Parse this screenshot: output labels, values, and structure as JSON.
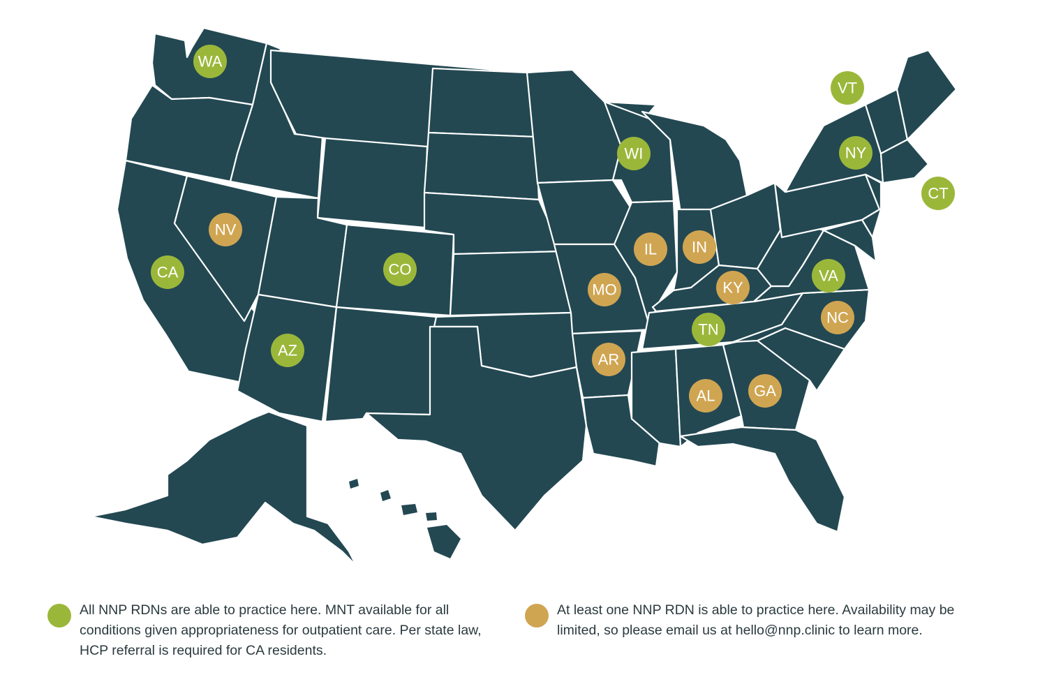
{
  "colors": {
    "land": "#234852",
    "border": "#ffffff",
    "all_practice": "#9bb73a",
    "some_practice": "#d0a552",
    "legend_text": "#2b3a3e"
  },
  "markers": [
    {
      "label": "WA",
      "category": "all"
    },
    {
      "label": "VT",
      "category": "all"
    },
    {
      "label": "WI",
      "category": "all"
    },
    {
      "label": "NY",
      "category": "all"
    },
    {
      "label": "CT",
      "category": "all"
    },
    {
      "label": "NV",
      "category": "some"
    },
    {
      "label": "IL",
      "category": "some"
    },
    {
      "label": "IN",
      "category": "some"
    },
    {
      "label": "CA",
      "category": "all"
    },
    {
      "label": "CO",
      "category": "all"
    },
    {
      "label": "VA",
      "category": "all"
    },
    {
      "label": "MO",
      "category": "some"
    },
    {
      "label": "KY",
      "category": "some"
    },
    {
      "label": "NC",
      "category": "some"
    },
    {
      "label": "TN",
      "category": "all"
    },
    {
      "label": "AZ",
      "category": "all"
    },
    {
      "label": "AR",
      "category": "some"
    },
    {
      "label": "AL",
      "category": "some"
    },
    {
      "label": "GA",
      "category": "some"
    }
  ],
  "legend": {
    "all_text": "All NNP RDNs are able to practice here. MNT available for all conditions given appropriateness for outpatient care. Per state law, HCP referral is required for CA residents.",
    "some_text": "At least one NNP RDN is able to practice here. Availability may be limited, so please email us at hello@nnp.clinic to learn more."
  }
}
